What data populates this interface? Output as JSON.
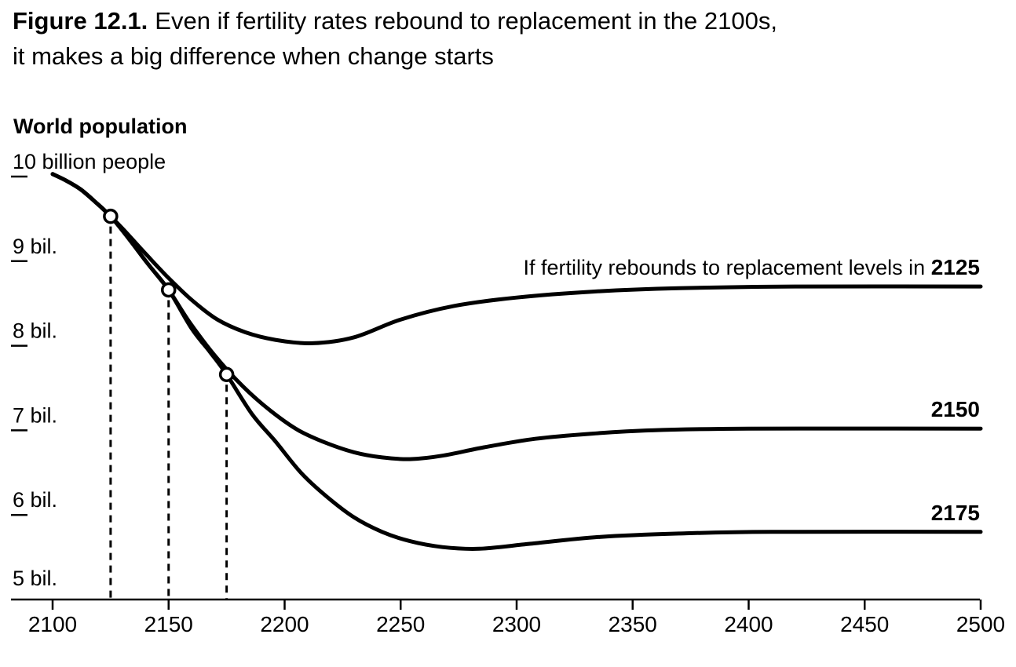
{
  "figure": {
    "label": "Figure 12.1.",
    "title_line1_rest": "Even if fertility rates rebound to replacement in the 2100s,",
    "title_line2": "it makes a big difference when change starts"
  },
  "chart_data": {
    "type": "line",
    "y_axis_title": "World population",
    "units": "billion people",
    "x_range": [
      2100,
      2500
    ],
    "y_range": [
      5,
      10
    ],
    "grid": "off",
    "x_ticks": [
      2100,
      2150,
      2200,
      2250,
      2300,
      2350,
      2400,
      2450,
      2500
    ],
    "y_ticks": [
      {
        "value": 10,
        "label": "10 billion people",
        "underline_tick": true
      },
      {
        "value": 9,
        "label": "9 bil.",
        "underline_tick": true
      },
      {
        "value": 8,
        "label": "8 bil.",
        "underline_tick": true
      },
      {
        "value": 7,
        "label": "7 bil.",
        "underline_tick": true
      },
      {
        "value": 6,
        "label": "6 bil.",
        "underline_tick": true
      },
      {
        "value": 5,
        "label": "5 bil.",
        "underline_tick": false
      }
    ],
    "series": [
      {
        "name": "rebound-2125",
        "annotation_prefix": "If fertility rebounds to replacement levels in ",
        "annotation_year": "2125",
        "points": [
          [
            2100,
            10.03
          ],
          [
            2106,
            9.95
          ],
          [
            2112,
            9.85
          ],
          [
            2118,
            9.71
          ],
          [
            2125,
            9.53
          ],
          [
            2132,
            9.33
          ],
          [
            2140,
            9.09
          ],
          [
            2150,
            8.8
          ],
          [
            2160,
            8.54
          ],
          [
            2171,
            8.31
          ],
          [
            2183,
            8.16
          ],
          [
            2196,
            8.07
          ],
          [
            2212,
            8.03
          ],
          [
            2230,
            8.1
          ],
          [
            2250,
            8.31
          ],
          [
            2273,
            8.47
          ],
          [
            2300,
            8.57
          ],
          [
            2333,
            8.64
          ],
          [
            2370,
            8.68
          ],
          [
            2420,
            8.7
          ],
          [
            2500,
            8.7
          ]
        ]
      },
      {
        "name": "rebound-2150",
        "annotation_prefix": "",
        "annotation_year": "2150",
        "points": [
          [
            2100,
            10.03
          ],
          [
            2106,
            9.95
          ],
          [
            2112,
            9.85
          ],
          [
            2118,
            9.71
          ],
          [
            2125,
            9.53
          ],
          [
            2133,
            9.26
          ],
          [
            2141,
            8.97
          ],
          [
            2150,
            8.66
          ],
          [
            2159,
            8.28
          ],
          [
            2170,
            7.88
          ],
          [
            2182,
            7.52
          ],
          [
            2194,
            7.23
          ],
          [
            2206,
            7.0
          ],
          [
            2218,
            6.85
          ],
          [
            2230,
            6.74
          ],
          [
            2242,
            6.68
          ],
          [
            2254,
            6.66
          ],
          [
            2268,
            6.7
          ],
          [
            2286,
            6.8
          ],
          [
            2308,
            6.9
          ],
          [
            2332,
            6.96
          ],
          [
            2358,
            7.0
          ],
          [
            2400,
            7.02
          ],
          [
            2500,
            7.02
          ]
        ]
      },
      {
        "name": "rebound-2175",
        "annotation_prefix": "",
        "annotation_year": "2175",
        "points": [
          [
            2100,
            10.03
          ],
          [
            2106,
            9.95
          ],
          [
            2112,
            9.85
          ],
          [
            2118,
            9.71
          ],
          [
            2125,
            9.53
          ],
          [
            2133,
            9.26
          ],
          [
            2141,
            8.97
          ],
          [
            2150,
            8.66
          ],
          [
            2160,
            8.2
          ],
          [
            2168,
            7.92
          ],
          [
            2175,
            7.66
          ],
          [
            2186,
            7.19
          ],
          [
            2196,
            6.87
          ],
          [
            2207,
            6.5
          ],
          [
            2218,
            6.22
          ],
          [
            2230,
            5.97
          ],
          [
            2242,
            5.8
          ],
          [
            2254,
            5.69
          ],
          [
            2268,
            5.62
          ],
          [
            2284,
            5.6
          ],
          [
            2306,
            5.66
          ],
          [
            2336,
            5.74
          ],
          [
            2370,
            5.78
          ],
          [
            2410,
            5.8
          ],
          [
            2500,
            5.8
          ]
        ]
      }
    ],
    "branch_markers": [
      {
        "year": 2125,
        "value": 9.53
      },
      {
        "year": 2150,
        "value": 8.66
      },
      {
        "year": 2175,
        "value": 7.66
      }
    ],
    "colors": {
      "line": "#000000",
      "background": "#ffffff",
      "marker_fill": "#ffffff"
    }
  }
}
